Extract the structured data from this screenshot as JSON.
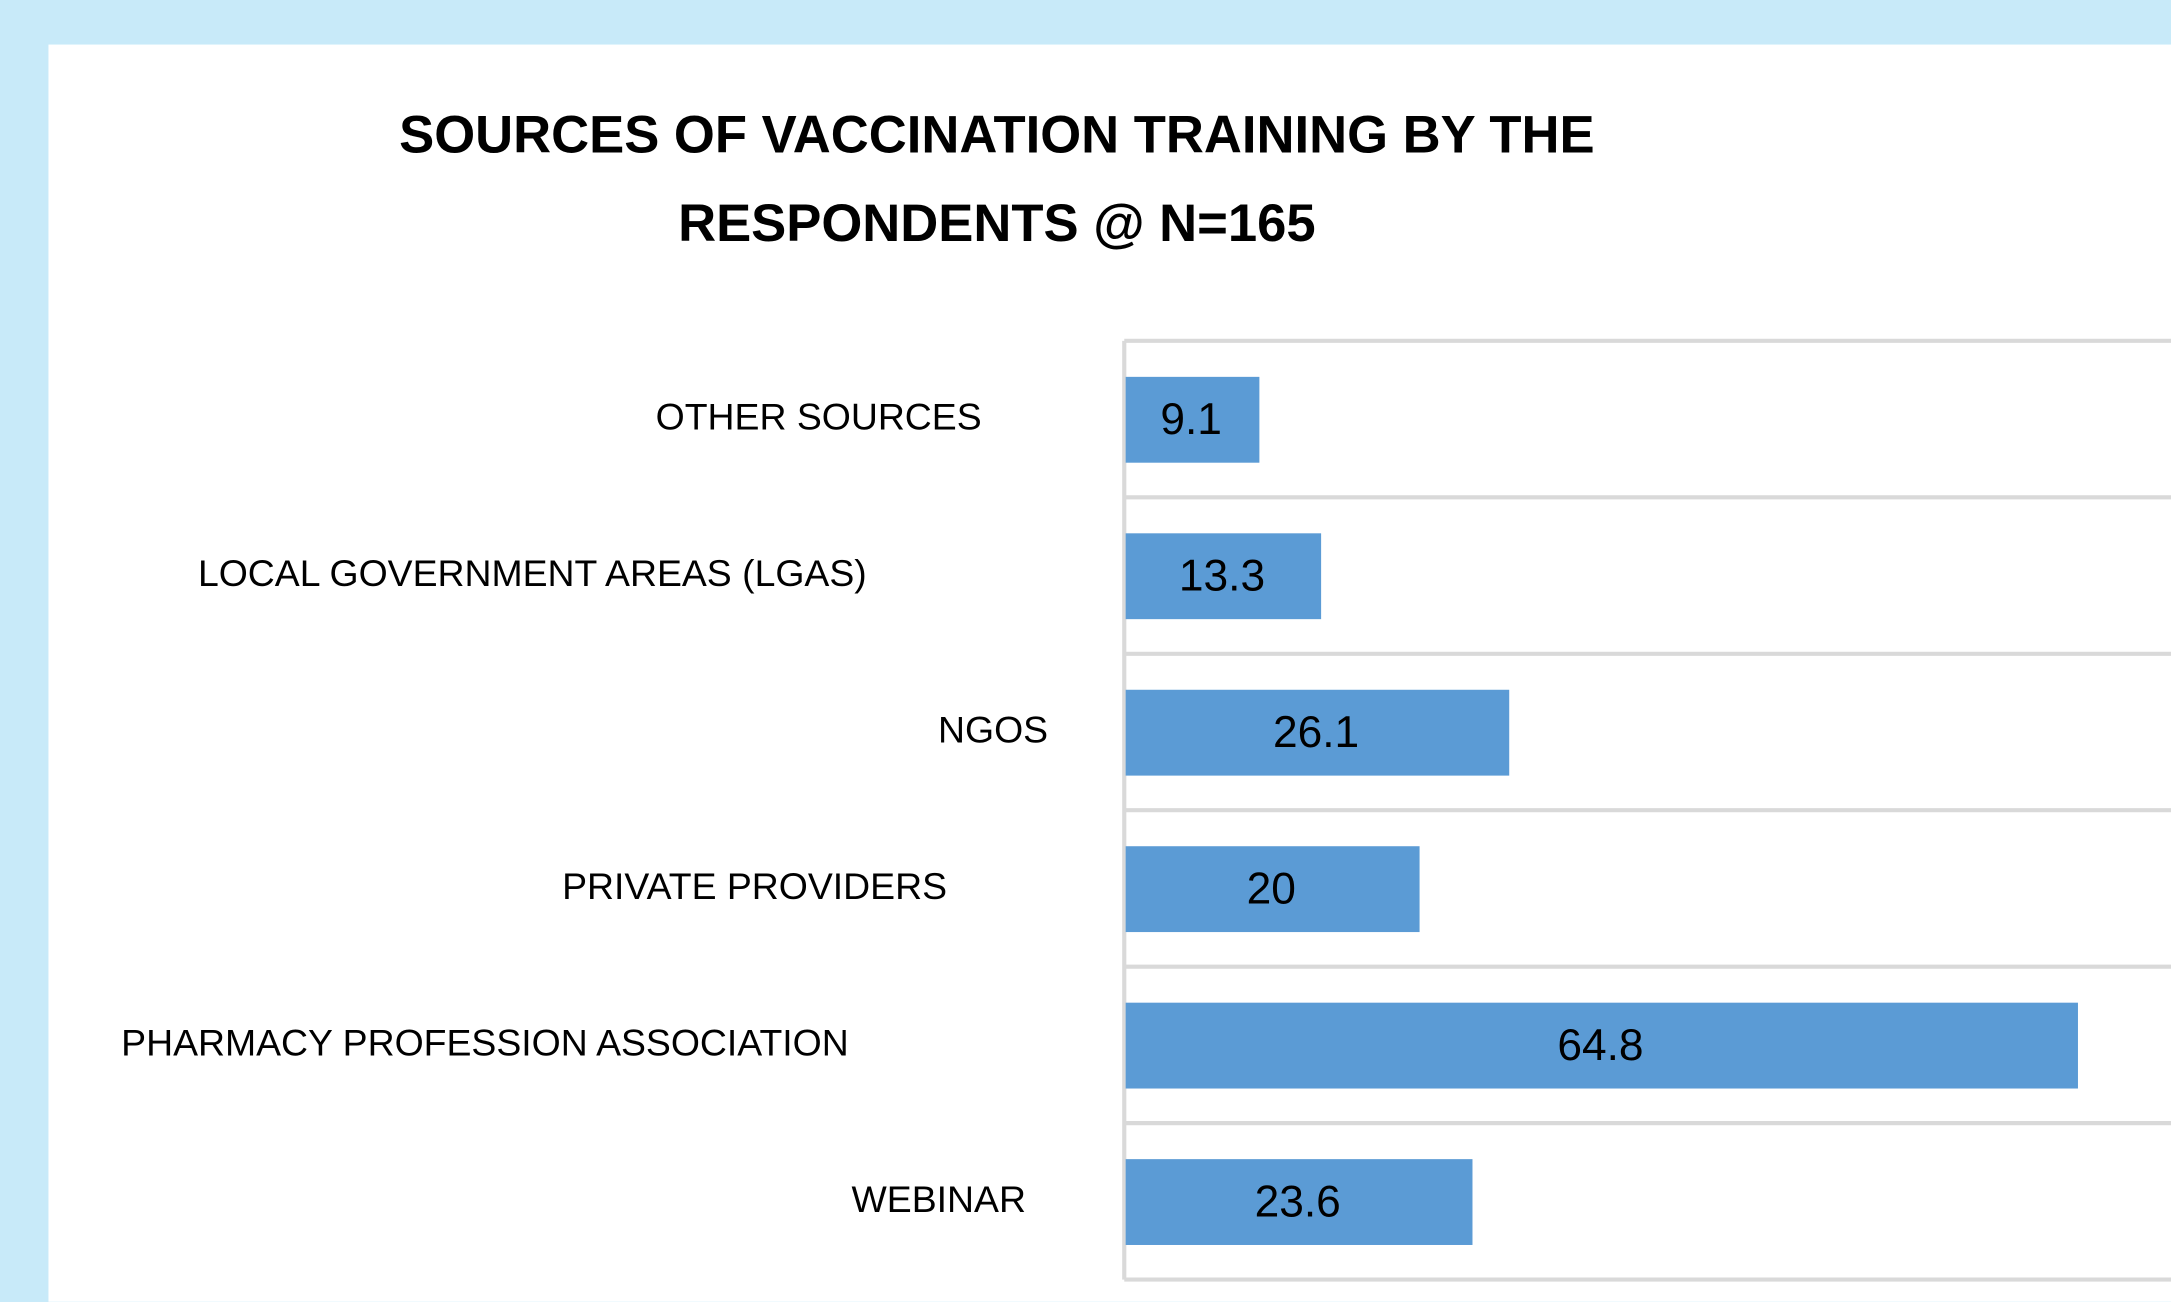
{
  "chart_data": {
    "type": "barh",
    "title": "SOURCES OF VACCINATION TRAINING BY THE RESPONDENTS @ N=165",
    "categories": [
      "OTHER SOURCES",
      "LOCAL GOVERNMENT AREAS (LGAS)",
      "NGOS",
      "PRIVATE PROVIDERS",
      "PHARMACY PROFESSION ASSOCIATION",
      "WEBINAR"
    ],
    "values": [
      9.1,
      13.3,
      26.1,
      20,
      64.8,
      23.6
    ],
    "color": "#5b9bd5",
    "xlim": [
      0,
      70
    ]
  }
}
